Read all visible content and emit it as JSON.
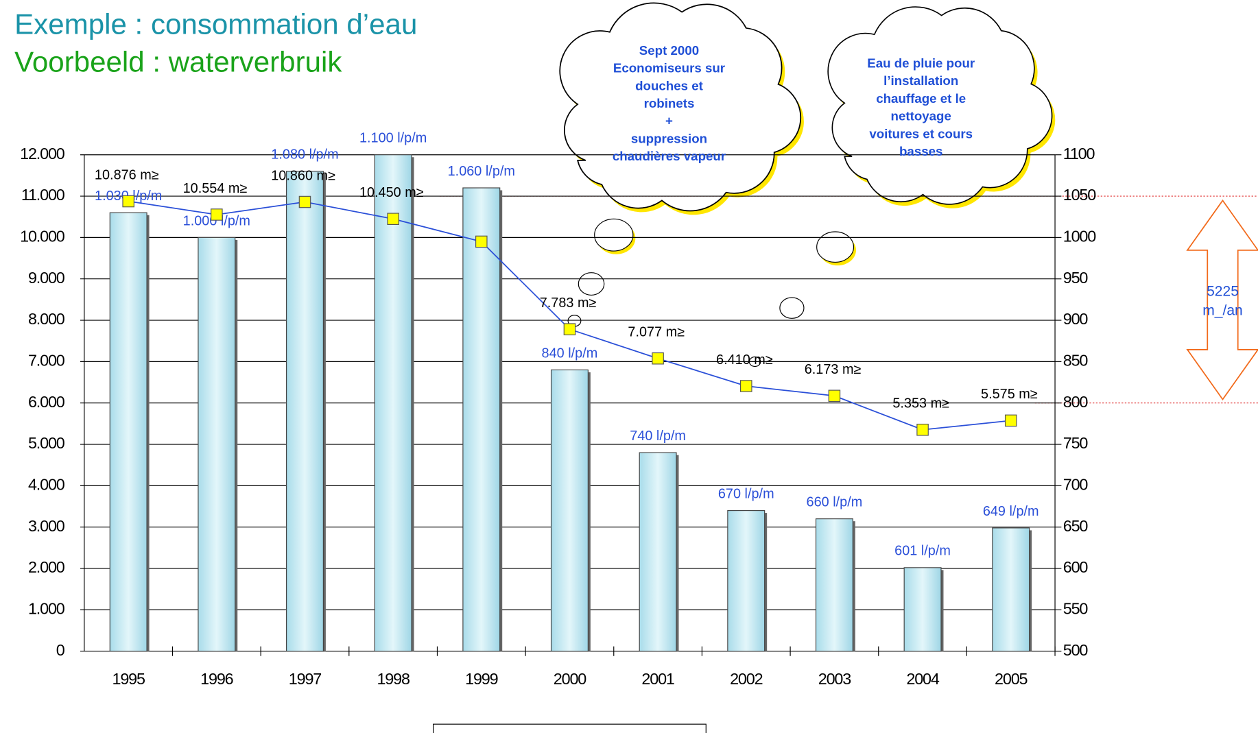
{
  "chart_data": {
    "type": "combo",
    "title": "Exemple : consommation d’eau",
    "subtitle": "Voorbeeld : waterverbruik",
    "categories": [
      "1995",
      "1996",
      "1997",
      "1998",
      "1999",
      "2000",
      "2001",
      "2002",
      "2003",
      "2004",
      "2005"
    ],
    "series": [
      {
        "type": "bar",
        "axis": "y2",
        "color": "#c9ecf4",
        "values": [
          1030,
          1000,
          1080,
          1100,
          1060,
          840,
          740,
          670,
          660,
          601,
          649
        ],
        "value_labels": [
          "1.030 l/p/m",
          "1.000 l/p/m",
          "1.080 l/p/m",
          "1.100 l/p/m",
          "1.060 l/p/m",
          "840 l/p/m",
          "740 l/p/m",
          "670 l/p/m",
          "660 l/p/m",
          "601 l/p/m",
          "649 l/p/m"
        ]
      },
      {
        "type": "line",
        "axis": "y",
        "color": "#2a4fd8",
        "marker_color": "#ffff00",
        "values": [
          10876,
          10554,
          10860,
          10450,
          9900,
          7783,
          7077,
          6410,
          6173,
          5353,
          5575
        ],
        "value_labels": [
          "10.876 m≥",
          "10.554 m≥",
          "10.860 m≥",
          "10.450 m≥",
          null,
          "7.783 m≥",
          "7.077 m≥",
          "6.410 m≥",
          "6.173 m≥",
          "5.353 m≥",
          "5.575 m≥"
        ]
      }
    ],
    "ylim": [
      0,
      12000
    ],
    "yticks": [
      {
        "value": 0,
        "label": "0"
      },
      {
        "value": 1000,
        "label": "1.000"
      },
      {
        "value": 2000,
        "label": "2.000"
      },
      {
        "value": 3000,
        "label": "3.000"
      },
      {
        "value": 4000,
        "label": "4.000"
      },
      {
        "value": 5000,
        "label": "5.000"
      },
      {
        "value": 6000,
        "label": "6.000"
      },
      {
        "value": 7000,
        "label": "7.000"
      },
      {
        "value": 8000,
        "label": "8.000"
      },
      {
        "value": 9000,
        "label": "9.000"
      },
      {
        "value": 10000,
        "label": "10.000"
      },
      {
        "value": 11000,
        "label": "11.000"
      },
      {
        "value": 12000,
        "label": "12.000"
      }
    ],
    "y2lim": [
      500,
      1100
    ],
    "y2ticks": [
      500,
      550,
      600,
      650,
      700,
      750,
      800,
      850,
      900,
      950,
      1000,
      1050,
      1100
    ],
    "reference_lines": [
      1050,
      800
    ],
    "grid": true,
    "annotations": [
      {
        "lines": [
          "Sept 2000",
          "Economiseurs  sur",
          "douches et",
          "robinets",
          "+",
          "suppression",
          "chaudières vapeur"
        ]
      },
      {
        "lines": [
          "Eau de pluie pour",
          "l’installation",
          "chauffage et le",
          "nettoyage",
          "voitures et cours",
          "basses"
        ]
      }
    ],
    "difference": {
      "lines": [
        "5225",
        "m_/an"
      ]
    }
  }
}
